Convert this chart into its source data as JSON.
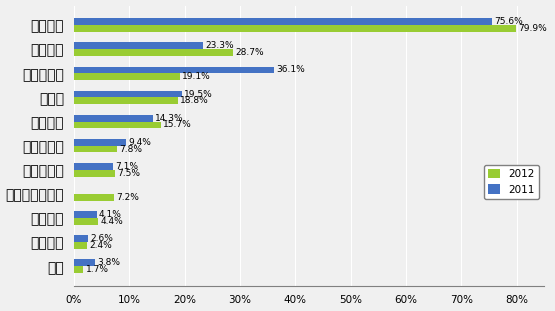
{
  "categories": [
    "产品质量",
    "供货能力",
    "产品性价比",
    "交货期",
    "技术支持",
    "技术领先性",
    "品牌知名度",
    "小批量供应服务",
    "产品组合",
    "付款条件",
    "信誉"
  ],
  "values_2012": [
    79.9,
    28.7,
    19.1,
    18.8,
    15.7,
    7.8,
    7.5,
    7.2,
    4.4,
    2.4,
    1.7
  ],
  "values_2011": [
    75.6,
    23.3,
    36.1,
    19.5,
    14.3,
    9.4,
    7.1,
    null,
    4.1,
    2.6,
    3.8
  ],
  "labels_2012": [
    "79.9%",
    "28.7%",
    "19.1%",
    "18.8%",
    "15.7%",
    "7.8%",
    "7.5%",
    "7.2%",
    "4.4%",
    "2.4%",
    "1.7%"
  ],
  "labels_2011": [
    "75.6%",
    "23.3%",
    "36.1%",
    "19.5%",
    "14.3%",
    "9.4%",
    "7.1%",
    "",
    "4.1%",
    "2.6%",
    "3.8%"
  ],
  "color_2012": "#99cc33",
  "color_2011": "#4472c4",
  "xlim": [
    0,
    85
  ],
  "xticks": [
    0,
    10,
    20,
    30,
    40,
    50,
    60,
    70,
    80
  ],
  "xticklabels": [
    "0%",
    "10%",
    "20%",
    "30%",
    "40%",
    "50%",
    "60%",
    "70%",
    "80%"
  ],
  "legend_labels": [
    "2012",
    "2011"
  ],
  "bar_height": 0.28,
  "figsize": [
    5.55,
    3.11
  ],
  "dpi": 100,
  "bg_color": "#f0f0f0"
}
